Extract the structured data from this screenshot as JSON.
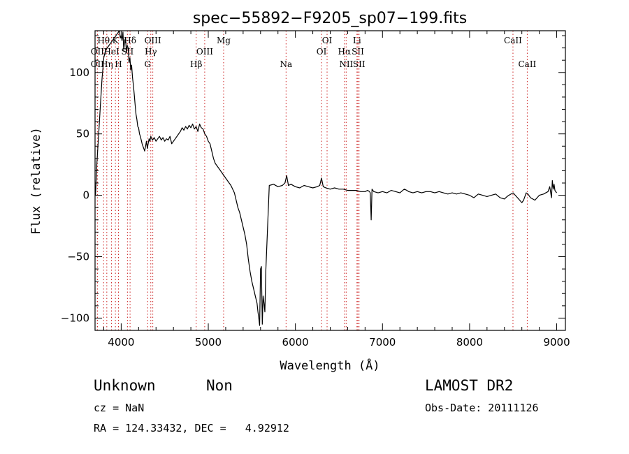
{
  "chart_data": {
    "type": "line",
    "title": "spec−55892−F9205_sp07−199.fits",
    "xlabel": "Wavelength (Å)",
    "ylabel": "Flux (relative)",
    "xlim": [
      3700,
      9100
    ],
    "ylim": [
      -110,
      134
    ],
    "xticks": [
      {
        "v": 4000,
        "label": "4000"
      },
      {
        "v": 5000,
        "label": "5000"
      },
      {
        "v": 6000,
        "label": "6000"
      },
      {
        "v": 7000,
        "label": "7000"
      },
      {
        "v": 8000,
        "label": "8000"
      },
      {
        "v": 9000,
        "label": "9000"
      }
    ],
    "yticks": [
      {
        "v": -100,
        "label": "−100"
      },
      {
        "v": -50,
        "label": "−50"
      },
      {
        "v": 0,
        "label": "0"
      },
      {
        "v": 50,
        "label": "50"
      },
      {
        "v": 100,
        "label": "100"
      }
    ],
    "series": [
      {
        "x": [
          3705,
          3720,
          3740,
          3760,
          3780,
          3800,
          3820,
          3840,
          3860,
          3880,
          3900,
          3920,
          3940,
          3960,
          3980,
          3990,
          4000,
          4010,
          4020,
          4030,
          4040,
          4050,
          4060,
          4070,
          4080,
          4090,
          4100,
          4110,
          4120,
          4130,
          4140,
          4150,
          4160,
          4170,
          4180,
          4190,
          4200,
          4210,
          4220,
          4230,
          4240,
          4250,
          4260,
          4270,
          4280,
          4290,
          4300,
          4310,
          4320,
          4330,
          4340,
          4350,
          4360,
          4380,
          4400,
          4420,
          4440,
          4460,
          4480,
          4500,
          4520,
          4540,
          4560,
          4580,
          4600,
          4620,
          4640,
          4660,
          4680,
          4700,
          4720,
          4740,
          4760,
          4780,
          4800,
          4820,
          4840,
          4860,
          4880,
          4900,
          4920,
          4940,
          4960,
          4980,
          5000,
          5020,
          5040,
          5060,
          5080,
          5100,
          5120,
          5140,
          5160,
          5180,
          5200,
          5220,
          5240,
          5260,
          5280,
          5300,
          5320,
          5340,
          5360,
          5380,
          5400,
          5420,
          5440,
          5460,
          5480,
          5500,
          5520,
          5540,
          5560,
          5570,
          5580,
          5590,
          5600,
          5610,
          5620,
          5630,
          5640,
          5650,
          5660,
          5700,
          5750,
          5800,
          5850,
          5880,
          5900,
          5920,
          5950,
          6000,
          6050,
          6100,
          6150,
          6200,
          6250,
          6280,
          6300,
          6320,
          6350,
          6400,
          6450,
          6500,
          6550,
          6600,
          6650,
          6700,
          6750,
          6800,
          6830,
          6850,
          6860,
          6870,
          6880,
          6900,
          6950,
          7000,
          7050,
          7100,
          7150,
          7200,
          7250,
          7280,
          7300,
          7350,
          7400,
          7450,
          7500,
          7550,
          7600,
          7650,
          7700,
          7750,
          7800,
          7850,
          7900,
          7950,
          8000,
          8050,
          8100,
          8150,
          8200,
          8250,
          8300,
          8350,
          8400,
          8430,
          8450,
          8500,
          8550,
          8600,
          8620,
          8650,
          8670,
          8700,
          8750,
          8800,
          8850,
          8900,
          8920,
          8940,
          8950,
          8960,
          8970,
          8980,
          9000
        ],
        "y": [
          0,
          25,
          48,
          72,
          95,
          112,
          118,
          120,
          122,
          124,
          126,
          128,
          130,
          132,
          134,
          128,
          130,
          126,
          133,
          118,
          126,
          128,
          116,
          122,
          120,
          108,
          112,
          102,
          106,
          96,
          90,
          82,
          74,
          66,
          62,
          56,
          55,
          50,
          48,
          45,
          42,
          40,
          38,
          36,
          40,
          44,
          38,
          42,
          46,
          44,
          48,
          46,
          45,
          47,
          44,
          46,
          48,
          45,
          47,
          44,
          46,
          45,
          48,
          42,
          44,
          46,
          48,
          50,
          52,
          55,
          53,
          56,
          54,
          57,
          55,
          58,
          54,
          56,
          52,
          58,
          55,
          54,
          50,
          48,
          44,
          42,
          36,
          30,
          26,
          24,
          22,
          20,
          18,
          16,
          14,
          12,
          10,
          8,
          5,
          2,
          -4,
          -10,
          -14,
          -20,
          -26,
          -32,
          -40,
          -52,
          -62,
          -70,
          -76,
          -82,
          -88,
          -95,
          -100,
          -106,
          -60,
          -58,
          -105,
          -82,
          -88,
          -95,
          -62,
          8,
          9,
          7,
          8,
          10,
          16,
          8,
          9,
          7,
          6,
          8,
          7,
          6,
          7,
          8,
          14,
          7,
          6,
          5,
          6,
          5,
          5,
          4,
          4,
          4,
          3,
          3,
          4,
          3,
          2,
          -20,
          5,
          3,
          2,
          3,
          2,
          4,
          3,
          2,
          5,
          4,
          3,
          2,
          3,
          2,
          3,
          3,
          2,
          3,
          2,
          1,
          2,
          1,
          2,
          1,
          0,
          -2,
          1,
          0,
          -1,
          0,
          1,
          -2,
          -3,
          -1,
          0,
          2,
          -2,
          -6,
          -4,
          2,
          1,
          -2,
          -4,
          0,
          1,
          3,
          7,
          -2,
          12,
          5,
          9,
          4,
          2
        ]
      }
    ],
    "lines": [
      {
        "x": 3727,
        "label": "OII",
        "row": 2
      },
      {
        "x": 3727,
        "label": "OII",
        "row": 1
      },
      {
        "x": 3798,
        "label": "Hθ",
        "row": 0
      },
      {
        "x": 3835,
        "label": "Hη",
        "row": 2
      },
      {
        "x": 3889,
        "label": "HeI",
        "row": 1
      },
      {
        "x": 3934,
        "label": "K",
        "row": 0
      },
      {
        "x": 3969,
        "label": "H",
        "row": 2
      },
      {
        "x": 4072,
        "label": "SII",
        "row": 1
      },
      {
        "x": 4102,
        "label": "Hδ",
        "row": 0
      },
      {
        "x": 4304,
        "label": "G",
        "row": 2
      },
      {
        "x": 4340,
        "label": "Hγ",
        "row": 1
      },
      {
        "x": 4363,
        "label": "OIII",
        "row": 0
      },
      {
        "x": 4861,
        "label": "Hβ",
        "row": 2
      },
      {
        "x": 4959,
        "label": "OIII",
        "row": 1
      },
      {
        "x": 5176,
        "label": "Mg",
        "row": 0
      },
      {
        "x": 5893,
        "label": "Na",
        "row": 2
      },
      {
        "x": 6300,
        "label": "OI",
        "row": 1
      },
      {
        "x": 6364,
        "label": "OI",
        "row": 0
      },
      {
        "x": 6563,
        "label": "Hα",
        "row": 1
      },
      {
        "x": 6583,
        "label": "NII",
        "row": 2
      },
      {
        "x": 6707,
        "label": "Li",
        "row": 0
      },
      {
        "x": 6717,
        "label": "SII",
        "row": 1
      },
      {
        "x": 6731,
        "label": "SII",
        "row": 2
      },
      {
        "x": 8498,
        "label": "CaII",
        "row": 0
      },
      {
        "x": 8662,
        "label": "CaII",
        "row": 2
      }
    ],
    "line_color": "#cc2222"
  },
  "info": {
    "class": "Unknown",
    "subclass": "Non",
    "survey": "LAMOST DR2",
    "cz": "cz = NaN",
    "obs_date": "Obs-Date: 20111126",
    "coords": "RA = 124.33432, DEC =   4.92912"
  }
}
